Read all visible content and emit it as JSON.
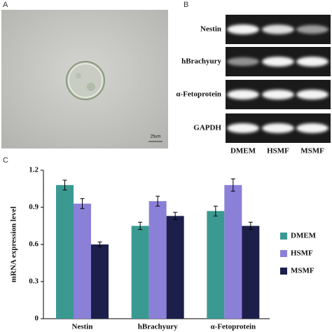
{
  "panels": {
    "a": "A",
    "b": "B",
    "c": "C"
  },
  "scale_bar": "25um",
  "gel": {
    "rows": [
      "Nestin",
      "hBrachyury",
      "α-Fetoprotein",
      "GAPDH"
    ],
    "lanes": [
      "DMEM",
      "HSMF",
      "MSMF"
    ]
  },
  "chart_data": {
    "type": "bar",
    "y_label": "mRNA expression level",
    "categories": [
      "Nestin",
      "hBrachyury",
      "α-Fetoprotein"
    ],
    "series": [
      {
        "name": "DMEM",
        "color": "#3a9a92",
        "values": [
          1.08,
          0.75,
          0.87
        ],
        "errors": [
          0.04,
          0.03,
          0.04
        ]
      },
      {
        "name": "HSMF",
        "color": "#8b80d8",
        "values": [
          0.93,
          0.95,
          1.08
        ],
        "errors": [
          0.04,
          0.04,
          0.05
        ]
      },
      {
        "name": "MSMF",
        "color": "#1c1f4a",
        "values": [
          0.6,
          0.83,
          0.75
        ],
        "errors": [
          0.02,
          0.03,
          0.03
        ]
      }
    ],
    "ylim": [
      0,
      1.2
    ],
    "yticks": [
      0,
      0.3,
      0.6,
      0.9,
      1.2
    ],
    "legend": "right"
  }
}
